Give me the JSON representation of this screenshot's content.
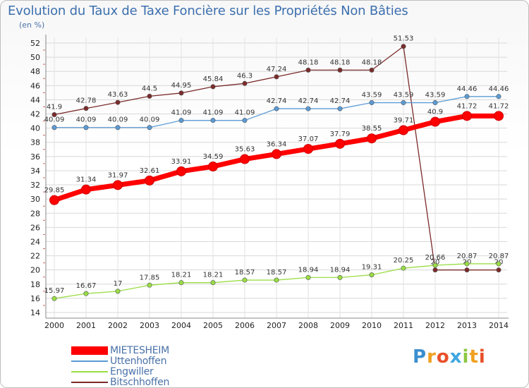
{
  "title": "Evolution du Taux de Taxe Foncière sur les Propriétés Non Bâties",
  "subtitle": "(en %)",
  "logo": {
    "text": "Proxiti",
    "letters": [
      "P",
      "r",
      "o",
      "x",
      "i",
      "t",
      "i"
    ]
  },
  "chart_data": {
    "type": "line",
    "x": [
      "2000",
      "2001",
      "2002",
      "2003",
      "2004",
      "2005",
      "2006",
      "2007",
      "2008",
      "2009",
      "2010",
      "2011",
      "2012",
      "2013",
      "2014"
    ],
    "ylim": [
      14,
      52
    ],
    "yticks": [
      "14",
      "16",
      "18",
      "20",
      "22",
      "24",
      "26",
      "28",
      "30",
      "32",
      "34",
      "36",
      "38",
      "40",
      "42",
      "44",
      "46",
      "48",
      "50",
      "52"
    ],
    "xlabel": "",
    "ylabel": "",
    "grid": true,
    "legend_position": "bottom-left",
    "series": [
      {
        "name": "MIETESHEIM",
        "color": "#ff0000",
        "values": [
          29.85,
          31.34,
          31.97,
          32.61,
          33.91,
          34.59,
          35.63,
          36.34,
          37.07,
          37.79,
          38.55,
          39.71,
          40.9,
          41.72,
          41.72
        ],
        "labels": [
          "29.85",
          "31.34",
          "31.97",
          "32.61",
          "33.91",
          "34.59",
          "35.63",
          "36.34",
          "37.07",
          "37.79",
          "38.55",
          "39.71",
          "40.9",
          "41.72",
          "41.72"
        ]
      },
      {
        "name": "Uttenhoffen",
        "color": "#5b9bd5",
        "values": [
          40.09,
          40.09,
          40.09,
          40.09,
          41.09,
          41.09,
          41.09,
          42.74,
          42.74,
          42.74,
          43.59,
          43.59,
          43.59,
          44.46,
          44.46
        ],
        "labels": [
          "40.09",
          "40.09",
          "40.09",
          "40.09",
          "41.09",
          "41.09",
          "41.09",
          "42.74",
          "42.74",
          "42.74",
          "43.59",
          "43.59",
          "43.59",
          "44.46",
          "44.46"
        ]
      },
      {
        "name": "Engwiller",
        "color": "#99dd44",
        "values": [
          15.97,
          16.67,
          17,
          17.85,
          18.21,
          18.21,
          18.57,
          18.57,
          18.94,
          18.94,
          19.31,
          20.25,
          20.66,
          20.87,
          20.87
        ],
        "labels": [
          "15.97",
          "16.67",
          "17",
          "17.85",
          "18.21",
          "18.21",
          "18.57",
          "18.57",
          "18.94",
          "18.94",
          "19.31",
          "20.25",
          "20.66",
          "20.87",
          "20.87"
        ]
      },
      {
        "name": "Bitschhoffen",
        "color": "#7b2b2b",
        "values": [
          41.9,
          42.78,
          43.63,
          44.5,
          44.95,
          45.84,
          46.3,
          47.24,
          48.18,
          48.18,
          48.18,
          51.53,
          20,
          20,
          20
        ],
        "labels": [
          "41.9",
          "42.78",
          "43.63",
          "44.5",
          "44.95",
          "45.84",
          "46.3",
          "47.24",
          "48.18",
          "48.18",
          "48.18",
          "51.53",
          "20",
          "20",
          "20"
        ]
      }
    ]
  }
}
